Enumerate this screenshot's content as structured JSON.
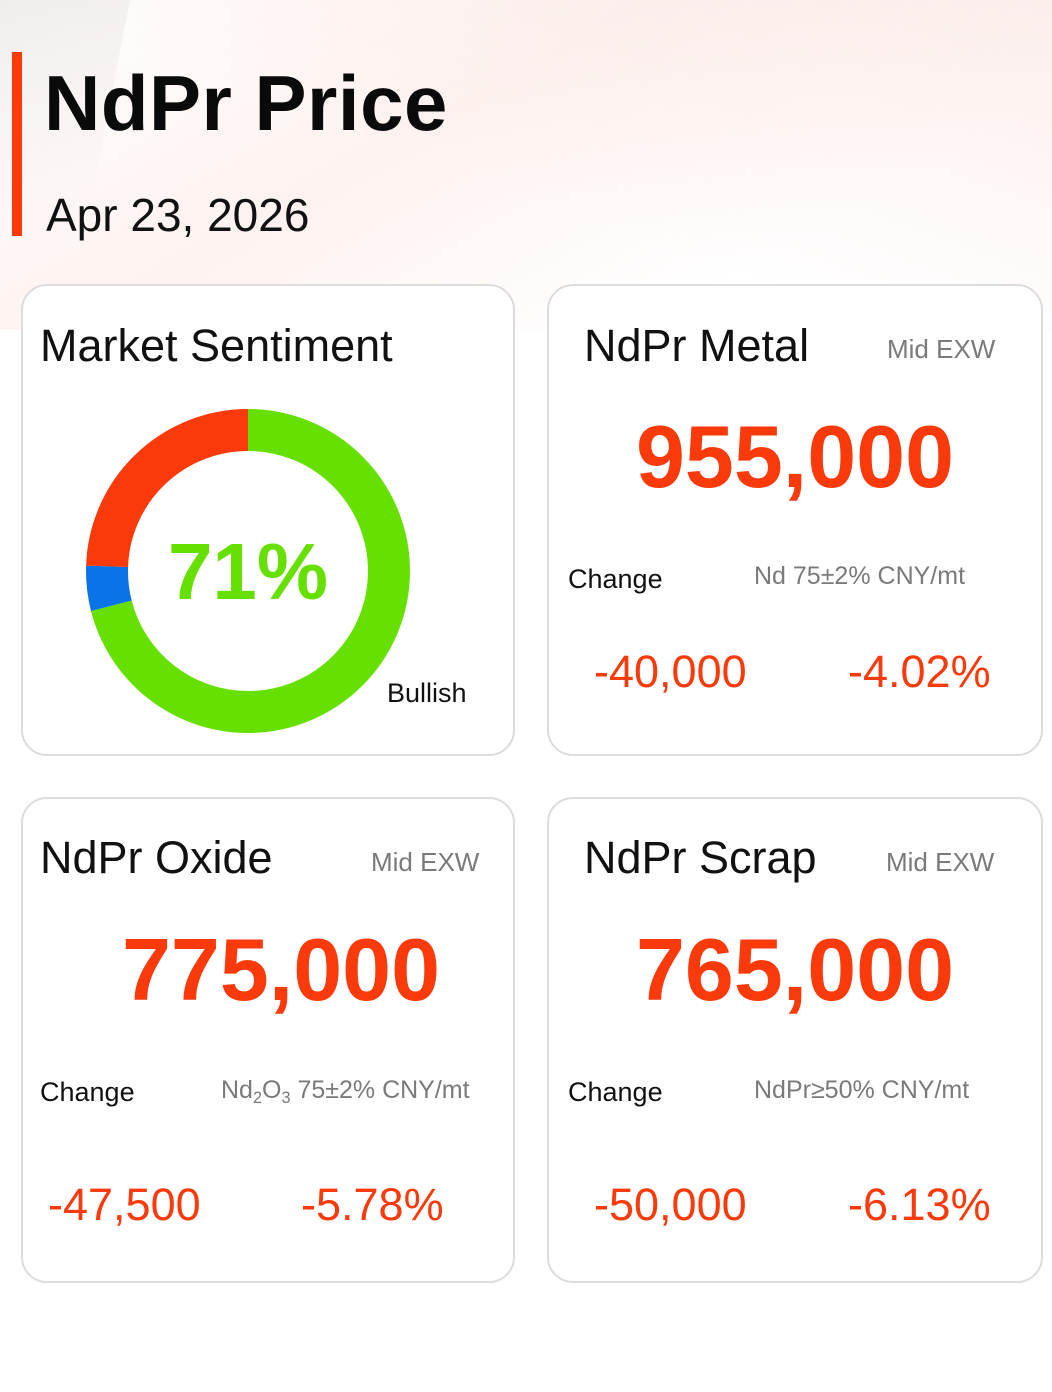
{
  "header": {
    "title": "NdPr Price",
    "date": "Apr 23, 2026",
    "accent_color": "#fa3a0a"
  },
  "sentiment": {
    "title": "Market Sentiment",
    "percent_label": "71%",
    "label": "Bullish",
    "segments": [
      {
        "name": "bullish",
        "value": 0.71,
        "color": "#66e000"
      },
      {
        "name": "neutral",
        "value": 0.045,
        "color": "#0a74e6"
      },
      {
        "name": "bearish",
        "value": 0.245,
        "color": "#fa3a0a"
      }
    ]
  },
  "cards": {
    "metal": {
      "title": "NdPr Metal",
      "meta": "Mid  EXW",
      "price": "955,000",
      "change_label": "Change",
      "spec": "Nd 75±2% CNY/mt",
      "change_abs": "-40,000",
      "change_pct": "-4.02%"
    },
    "oxide": {
      "title": "NdPr Oxide",
      "meta": "Mid  EXW",
      "price": "775,000",
      "change_label": "Change",
      "spec_prefix": "Nd",
      "spec_sub1": "2",
      "spec_mid": "O",
      "spec_sub2": "3",
      "spec_suffix": " 75±2% CNY/mt",
      "change_abs": "-47,500",
      "change_pct": "-5.78%"
    },
    "scrap": {
      "title": "NdPr Scrap",
      "meta": "Mid  EXW",
      "price": "765,000",
      "change_label": "Change",
      "spec": "NdPr≥50% CNY/mt",
      "change_abs": "-50,000",
      "change_pct": "-6.13%"
    }
  },
  "colors": {
    "negative": "#fa3a0a",
    "bullish": "#66e000",
    "neutral": "#0a74e6",
    "muted_text": "#7a7a7a"
  }
}
